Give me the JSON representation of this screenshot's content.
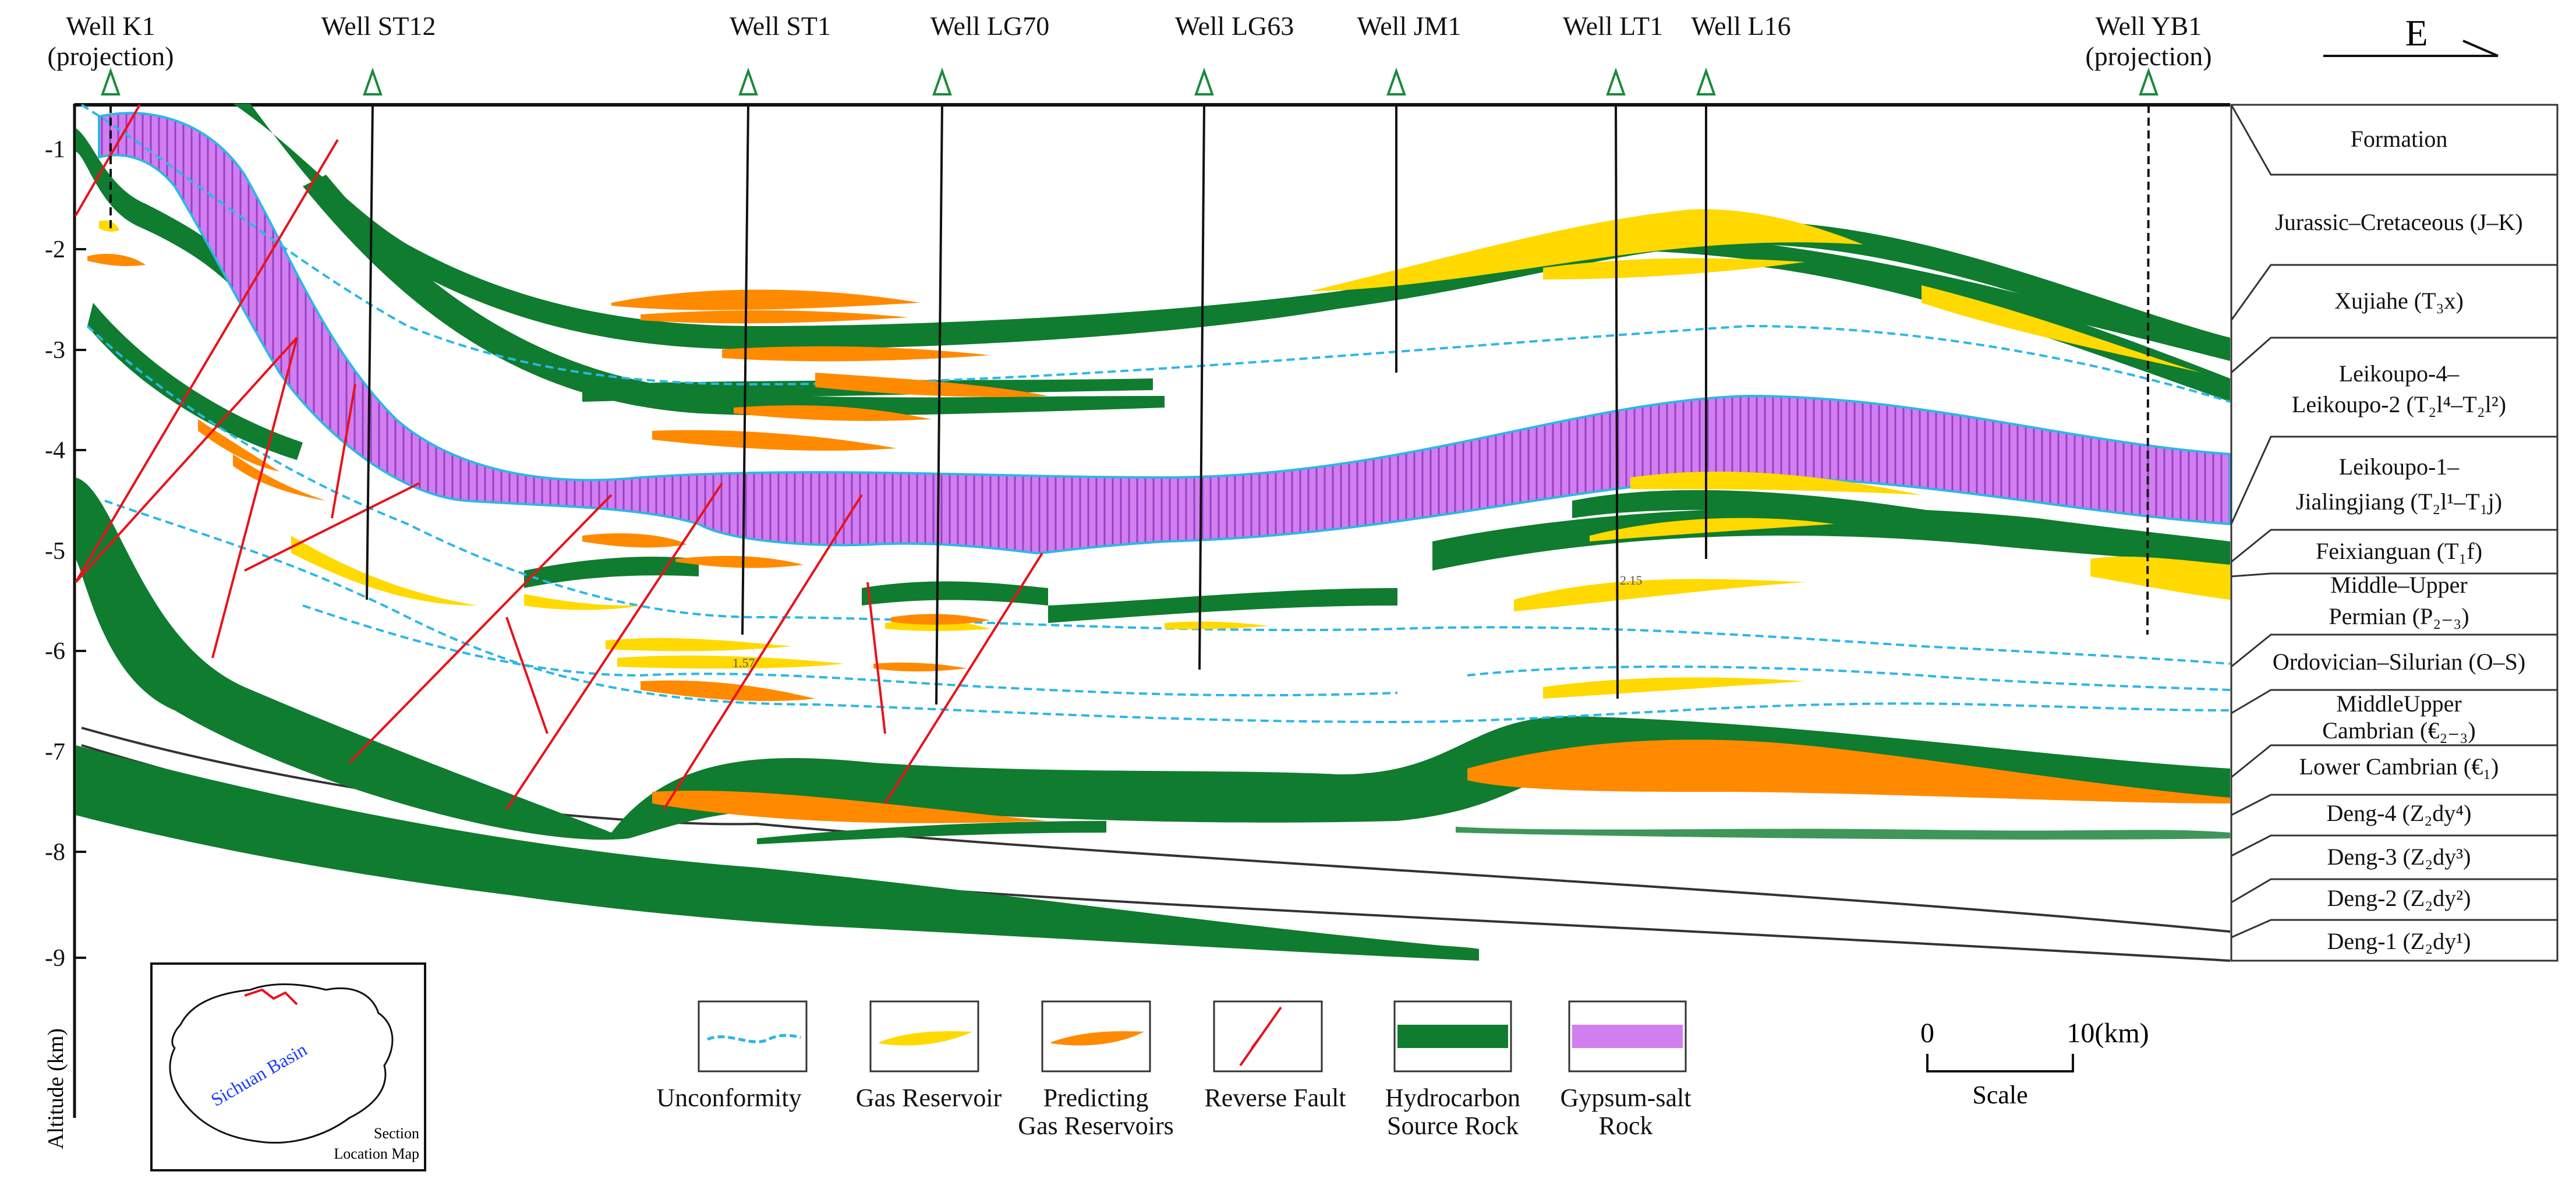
{
  "figure": {
    "direction_label": "E",
    "y_axis_label": "Altitude (km)",
    "y_ticks": [
      "-1",
      "-2",
      "-3",
      "-4",
      "-5",
      "-6",
      "-7",
      "-8",
      "-9"
    ],
    "wells": [
      {
        "name": "Well K1",
        "note": "(projection)"
      },
      {
        "name": "Well ST12",
        "note": ""
      },
      {
        "name": "Well ST1",
        "note": ""
      },
      {
        "name": "Well  LG70",
        "note": ""
      },
      {
        "name": "Well  LG63",
        "note": ""
      },
      {
        "name": "Well  JM1",
        "note": ""
      },
      {
        "name": "Well  LT1",
        "note": ""
      },
      {
        "name": "Well  L16",
        "note": ""
      },
      {
        "name": "Well YB1",
        "note": "(projection)"
      }
    ],
    "formation_header": "Formation",
    "formations": [
      {
        "line1": "Jurassic–Cretaceous (J–K)",
        "line2": ""
      },
      {
        "line1": "Xujiahe (T₃x)",
        "line2": ""
      },
      {
        "line1": "Leikoupo-4–",
        "line2": "Leikoupo-2 (T₂l⁴–T₂l²)"
      },
      {
        "line1": "Leikoupo-1–",
        "line2": "Jialingjiang (T₂l¹–T₁j)"
      },
      {
        "line1": "Feixianguan (T₁f)",
        "line2": ""
      },
      {
        "line1": "Middle–Upper",
        "line2": "Permian (P₂₋₃)"
      },
      {
        "line1": "Ordovician–Silurian (O–S)",
        "line2": ""
      },
      {
        "line1": "MiddleUpper",
        "line2": "Cambrian (€₂₋₃)"
      },
      {
        "line1": "Lower Cambrian (€₁)",
        "line2": ""
      },
      {
        "line1": "Deng-4 (Z₂dy⁴)",
        "line2": ""
      },
      {
        "line1": "Deng-3 (Z₂dy³)",
        "line2": ""
      },
      {
        "line1": "Deng-2 (Z₂dy²)",
        "line2": ""
      },
      {
        "line1": "Deng-1 (Z₂dy¹)",
        "line2": ""
      }
    ],
    "annotations": {
      "st1_value": "1.57",
      "lt1_value": "2.15"
    },
    "inset_map": {
      "basin_label": "Sichuan Basin",
      "caption_line1": "Section",
      "caption_line2": "Location Map"
    },
    "legend": [
      {
        "line1": "Unconformity",
        "line2": ""
      },
      {
        "line1": "Gas Reservoir",
        "line2": ""
      },
      {
        "line1": "Predicting",
        "line2": "Gas Reservoirs"
      },
      {
        "line1": "Reverse Fault",
        "line2": ""
      },
      {
        "line1": "Hydrocarbon",
        "line2": "Source Rock"
      },
      {
        "line1": "Gypsum-salt",
        "line2": "Rock"
      }
    ],
    "scale": {
      "start": "0",
      "end": "10(km)",
      "label": "Scale"
    },
    "colors": {
      "source_rock": "#0f7c2f",
      "gypsum_salt": "#d07ef0",
      "gas_reservoir": "#ffd900",
      "predicting_gas": "#ff8a00",
      "unconformity": "#2bb7e6",
      "reverse_fault": "#e8121a"
    }
  }
}
